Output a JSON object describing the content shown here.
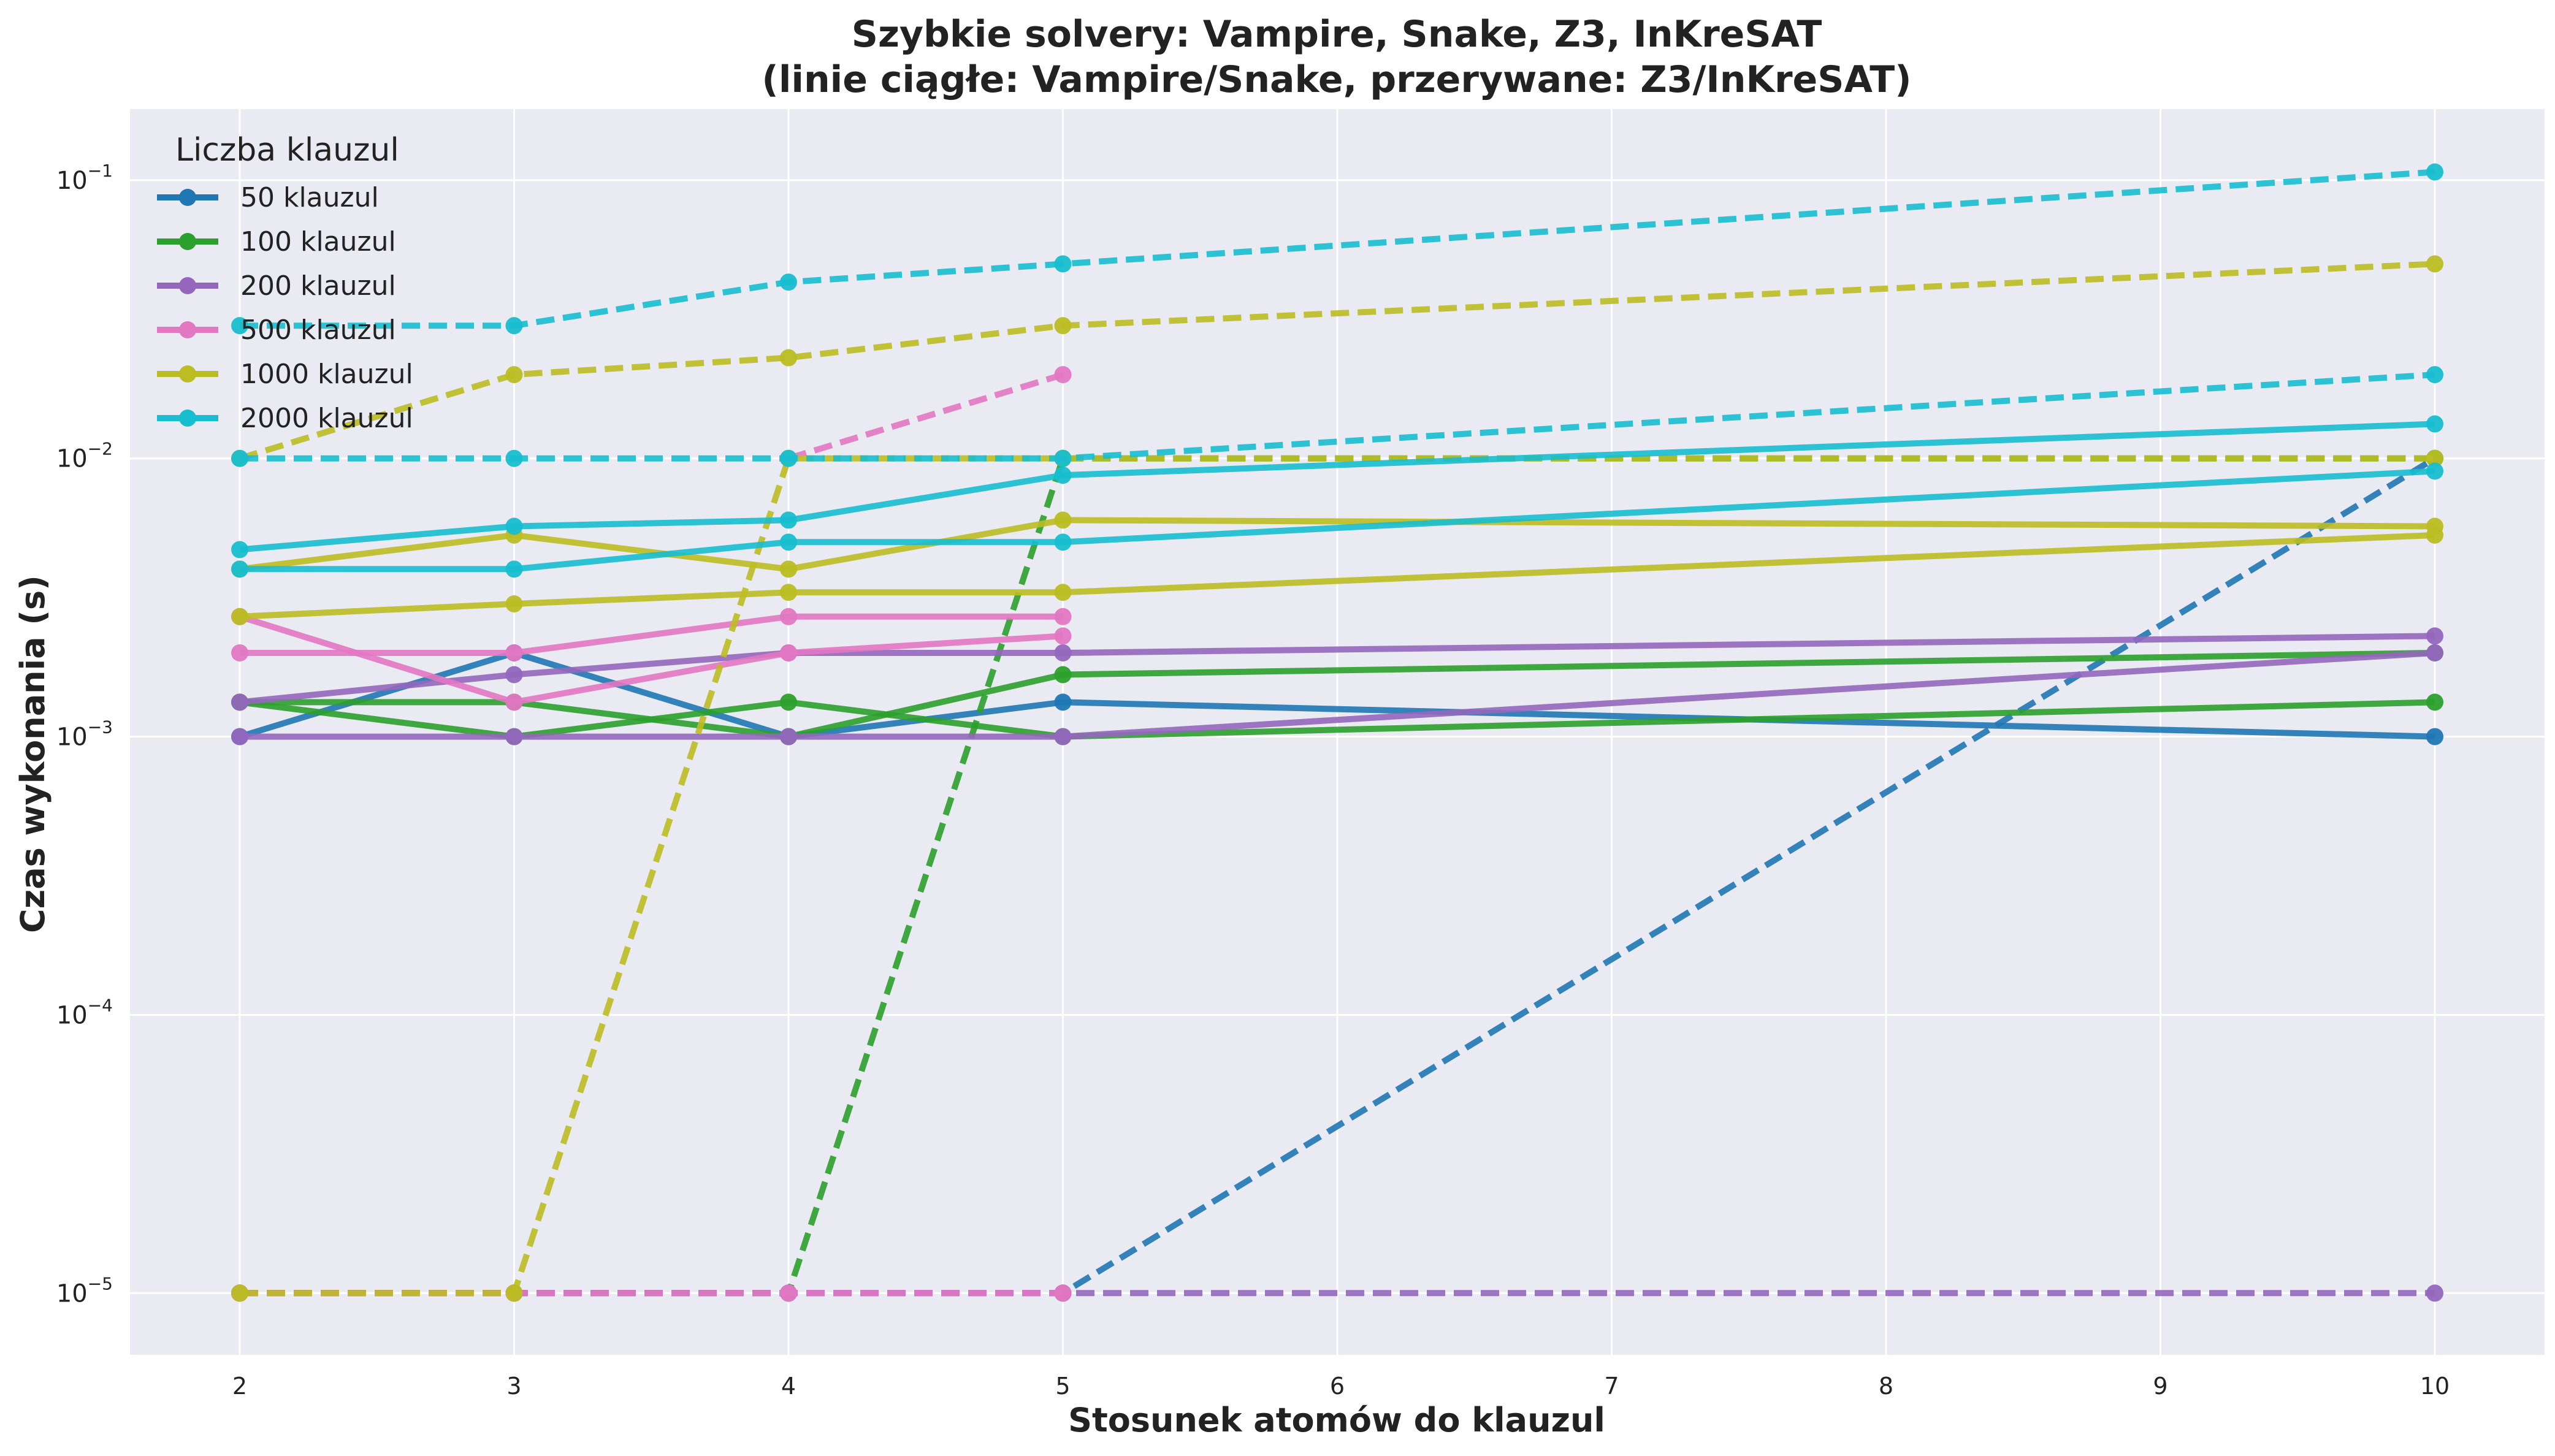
{
  "chart_data": {
    "type": "line",
    "title": "Szybkie solvery: Vampire, Snake, Z3, InKreSAT",
    "subtitle": "(linie ciągłe: Vampire/Snake, przerywane: Z3/InKreSAT)",
    "xlabel": "Stosunek atomów do klauzul",
    "ylabel": "Czas wykonania (s)",
    "x_ticks": [
      2,
      3,
      4,
      5,
      6,
      7,
      8,
      9,
      10
    ],
    "x_range": [
      1.6,
      10.4
    ],
    "y_scale": "log",
    "y_range": [
      6e-06,
      0.18
    ],
    "y_ticks": [
      1e-05,
      0.0001,
      0.001,
      0.01,
      0.1
    ],
    "y_tick_labels": [
      {
        "base": "10",
        "exp": "−5"
      },
      {
        "base": "10",
        "exp": "−4"
      },
      {
        "base": "10",
        "exp": "−3"
      },
      {
        "base": "10",
        "exp": "−2"
      },
      {
        "base": "10",
        "exp": "−1"
      }
    ],
    "grid": true,
    "background_color": "#eaeaf2",
    "legend": {
      "title": "Liczba klauzul",
      "placement": "top-left",
      "entries": [
        {
          "label": "50 klauzul",
          "color": "#1f77b4"
        },
        {
          "label": "100 klauzul",
          "color": "#2ca02c"
        },
        {
          "label": "200 klauzul",
          "color": "#9467bd"
        },
        {
          "label": "500 klauzul",
          "color": "#e377c2"
        },
        {
          "label": "1000 klauzul",
          "color": "#bcbd22"
        },
        {
          "label": "2000 klauzul",
          "color": "#17becf"
        }
      ]
    },
    "series": [
      {
        "group": "50 klauzul",
        "style": "solid",
        "color": "#1f77b4",
        "x": [
          2,
          3,
          4,
          5,
          10
        ],
        "y": [
          0.001,
          0.002,
          0.001,
          0.00133,
          0.001
        ]
      },
      {
        "group": "50 klauzul",
        "style": "dashed",
        "color": "#1f77b4",
        "x": [
          2,
          3,
          4,
          5,
          10
        ],
        "y": [
          1e-05,
          1e-05,
          1e-05,
          1e-05,
          0.01
        ]
      },
      {
        "group": "100 klauzul",
        "style": "solid",
        "color": "#2ca02c",
        "x": [
          2,
          3,
          4,
          5,
          10
        ],
        "y": [
          0.00133,
          0.001,
          0.00133,
          0.001,
          0.00133
        ]
      },
      {
        "group": "100 klauzul",
        "style": "solid",
        "color": "#2ca02c",
        "x": [
          2,
          3,
          4,
          5,
          10
        ],
        "y": [
          0.00133,
          0.00133,
          0.001,
          0.00167,
          0.002
        ]
      },
      {
        "group": "100 klauzul",
        "style": "dashed",
        "color": "#2ca02c",
        "x": [
          2,
          3,
          4,
          5,
          10
        ],
        "y": [
          1e-05,
          1e-05,
          1e-05,
          0.01,
          0.01
        ]
      },
      {
        "group": "200 klauzul",
        "style": "solid",
        "color": "#9467bd",
        "x": [
          2,
          3,
          4,
          5,
          10
        ],
        "y": [
          0.001,
          0.001,
          0.001,
          0.001,
          0.002
        ]
      },
      {
        "group": "200 klauzul",
        "style": "solid",
        "color": "#9467bd",
        "x": [
          2,
          3,
          4,
          5,
          10
        ],
        "y": [
          0.00133,
          0.00167,
          0.002,
          0.002,
          0.0023
        ]
      },
      {
        "group": "200 klauzul",
        "style": "dashed",
        "color": "#9467bd",
        "x": [
          2,
          3,
          4,
          5,
          10
        ],
        "y": [
          1e-05,
          1e-05,
          1e-05,
          1e-05,
          1e-05
        ]
      },
      {
        "group": "500 klauzul",
        "style": "solid",
        "color": "#e377c2",
        "x": [
          2,
          3,
          4,
          5
        ],
        "y": [
          0.0027,
          0.00133,
          0.002,
          0.0023
        ]
      },
      {
        "group": "500 klauzul",
        "style": "solid",
        "color": "#e377c2",
        "x": [
          2,
          3,
          4,
          5
        ],
        "y": [
          0.002,
          0.002,
          0.0027,
          0.0027
        ]
      },
      {
        "group": "500 klauzul",
        "style": "dashed",
        "color": "#e377c2",
        "x": [
          2,
          3,
          4,
          5
        ],
        "y": [
          1e-05,
          1e-05,
          1e-05,
          1e-05
        ]
      },
      {
        "group": "500 klauzul",
        "style": "dashed",
        "color": "#e377c2",
        "x": [
          4,
          5
        ],
        "y": [
          0.01,
          0.02
        ]
      },
      {
        "group": "1000 klauzul",
        "style": "solid",
        "color": "#bcbd22",
        "x": [
          2,
          3,
          4,
          5,
          10
        ],
        "y": [
          0.004,
          0.0053,
          0.004,
          0.006,
          0.0057
        ]
      },
      {
        "group": "1000 klauzul",
        "style": "solid",
        "color": "#bcbd22",
        "x": [
          2,
          3,
          4,
          5,
          10
        ],
        "y": [
          0.0027,
          0.003,
          0.0033,
          0.0033,
          0.0053
        ]
      },
      {
        "group": "1000 klauzul",
        "style": "dashed",
        "color": "#bcbd22",
        "x": [
          2,
          3,
          4,
          5,
          10
        ],
        "y": [
          1e-05,
          1e-05,
          0.01,
          0.01,
          0.01
        ]
      },
      {
        "group": "1000 klauzul",
        "style": "dashed",
        "color": "#bcbd22",
        "x": [
          2,
          3,
          4,
          5,
          10
        ],
        "y": [
          0.01,
          0.02,
          0.023,
          0.03,
          0.05
        ]
      },
      {
        "group": "2000 klauzul",
        "style": "solid",
        "color": "#17becf",
        "x": [
          2,
          3,
          4,
          5,
          10
        ],
        "y": [
          0.0047,
          0.0057,
          0.006,
          0.0087,
          0.0133
        ]
      },
      {
        "group": "2000 klauzul",
        "style": "solid",
        "color": "#17becf",
        "x": [
          2,
          3,
          4,
          5,
          10
        ],
        "y": [
          0.004,
          0.004,
          0.005,
          0.005,
          0.009
        ]
      },
      {
        "group": "2000 klauzul",
        "style": "dashed",
        "color": "#17becf",
        "x": [
          2,
          3,
          4,
          5,
          10
        ],
        "y": [
          0.01,
          0.01,
          0.01,
          0.01,
          0.02
        ]
      },
      {
        "group": "2000 klauzul",
        "style": "dashed",
        "color": "#17becf",
        "x": [
          2,
          3,
          4,
          5,
          10
        ],
        "y": [
          0.03,
          0.03,
          0.043,
          0.05,
          0.107
        ]
      }
    ]
  }
}
